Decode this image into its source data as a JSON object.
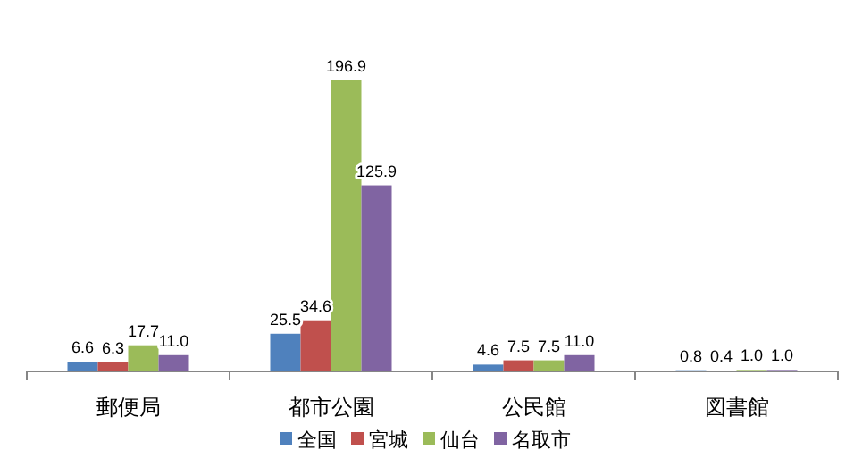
{
  "chart_data": {
    "type": "bar",
    "categories": [
      "郵便局",
      "都市公園",
      "公民館",
      "図書館"
    ],
    "series": [
      {
        "name": "全国",
        "color": "#4f81bd",
        "values": [
          6.6,
          25.5,
          4.6,
          0.8
        ],
        "value_labels": [
          "6.6",
          "25.5",
          "4.6",
          "0.8"
        ]
      },
      {
        "name": "宮城",
        "color": "#c0504d",
        "values": [
          6.3,
          34.6,
          7.5,
          0.4
        ],
        "value_labels": [
          "6.3",
          "34.6",
          "7.5",
          "0.4"
        ]
      },
      {
        "name": "仙台",
        "color": "#9bbb59",
        "values": [
          17.7,
          196.9,
          7.5,
          1.0
        ],
        "value_labels": [
          "17.7",
          "196.9",
          "7.5",
          "1.0"
        ]
      },
      {
        "name": "名取市",
        "color": "#8064a2",
        "values": [
          11.0,
          125.9,
          11.0,
          1.0
        ],
        "value_labels": [
          "11.0",
          "125.9",
          "11.0",
          "1.0"
        ]
      }
    ],
    "legend": "bottom"
  }
}
